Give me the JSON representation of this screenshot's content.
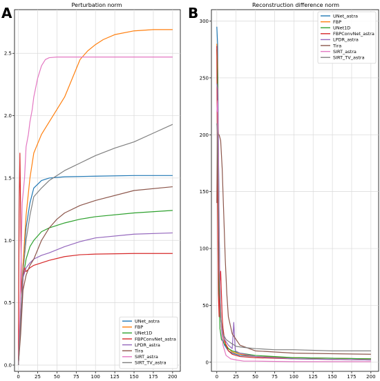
{
  "colors": {
    "UNet_astra": "#1f77b4",
    "FBP": "#ff7f0e",
    "UNet1D": "#2ca02c",
    "FBPConvNet_astra": "#d62728",
    "LPDR_astra": "#9467bd",
    "Tira": "#8c564b",
    "SIRT_astra": "#e377c2",
    "SIRT_TV_astra": "#7f7f7f"
  },
  "chart_data": [
    {
      "panel": "A",
      "type": "line",
      "title": "Perturbation norm",
      "xlabel": "",
      "ylabel": "",
      "xlim": [
        -5,
        210
      ],
      "ylim": [
        -0.05,
        2.85
      ],
      "xticks": [
        0,
        25,
        50,
        75,
        100,
        125,
        150,
        175,
        200
      ],
      "yticks": [
        0.0,
        0.5,
        1.0,
        1.5,
        2.0,
        2.5
      ],
      "ytick_labels": [
        "0.0",
        "0.5",
        "1.0",
        "1.5",
        "2.0",
        "2.5"
      ],
      "grid": true,
      "legend_position": "bottom-right",
      "series": [
        {
          "name": "UNet_astra",
          "x": [
            0,
            3,
            6,
            10,
            15,
            20,
            30,
            40,
            60,
            100,
            150,
            200
          ],
          "values": [
            0.0,
            0.3,
            0.8,
            1.1,
            1.3,
            1.42,
            1.48,
            1.5,
            1.51,
            1.515,
            1.52,
            1.52
          ]
        },
        {
          "name": "FBP",
          "x": [
            0,
            3,
            6,
            10,
            15,
            20,
            30,
            40,
            50,
            60,
            70,
            80,
            90,
            100,
            110,
            125,
            150,
            175,
            200
          ],
          "values": [
            0.0,
            0.3,
            0.8,
            1.2,
            1.5,
            1.7,
            1.85,
            1.95,
            2.05,
            2.15,
            2.3,
            2.45,
            2.52,
            2.57,
            2.61,
            2.65,
            2.68,
            2.69,
            2.69
          ]
        },
        {
          "name": "UNet1D",
          "x": [
            0,
            3,
            6,
            10,
            15,
            20,
            30,
            40,
            60,
            80,
            100,
            150,
            200
          ],
          "values": [
            0.0,
            0.4,
            0.7,
            0.85,
            0.95,
            1.0,
            1.07,
            1.1,
            1.14,
            1.17,
            1.19,
            1.22,
            1.24
          ]
        },
        {
          "name": "FBPConvNet_astra",
          "x": [
            0,
            1,
            2,
            3,
            4,
            5,
            6,
            8,
            10,
            15,
            20,
            30,
            40,
            60,
            80,
            100,
            150,
            200
          ],
          "values": [
            0.0,
            1.2,
            1.7,
            1.2,
            0.6,
            0.5,
            0.7,
            0.78,
            0.75,
            0.78,
            0.8,
            0.82,
            0.84,
            0.87,
            0.885,
            0.89,
            0.895,
            0.895
          ]
        },
        {
          "name": "LPDR_astra",
          "x": [
            0,
            3,
            6,
            10,
            15,
            20,
            30,
            40,
            60,
            80,
            100,
            150,
            200
          ],
          "values": [
            0.0,
            0.35,
            0.7,
            0.78,
            0.82,
            0.85,
            0.88,
            0.9,
            0.95,
            0.99,
            1.02,
            1.05,
            1.06
          ]
        },
        {
          "name": "Tira",
          "x": [
            0,
            3,
            6,
            10,
            15,
            20,
            30,
            40,
            50,
            60,
            80,
            100,
            150,
            200
          ],
          "values": [
            0.0,
            0.25,
            0.6,
            0.72,
            0.8,
            0.85,
            1.0,
            1.1,
            1.17,
            1.22,
            1.28,
            1.32,
            1.4,
            1.43
          ]
        },
        {
          "name": "SIRT_astra",
          "x": [
            0,
            2,
            5,
            8,
            10,
            13,
            15,
            18,
            20,
            25,
            30,
            35,
            40,
            50,
            100,
            150,
            200
          ],
          "values": [
            0.0,
            0.4,
            1.3,
            1.5,
            1.75,
            1.85,
            1.95,
            2.05,
            2.15,
            2.3,
            2.4,
            2.45,
            2.465,
            2.47,
            2.47,
            2.47,
            2.47
          ]
        },
        {
          "name": "SIRT_TV_astra",
          "x": [
            0,
            3,
            6,
            10,
            15,
            20,
            30,
            40,
            50,
            60,
            70,
            80,
            90,
            100,
            125,
            150,
            175,
            200
          ],
          "values": [
            0.0,
            0.4,
            0.75,
            1.0,
            1.2,
            1.35,
            1.42,
            1.48,
            1.52,
            1.56,
            1.59,
            1.62,
            1.65,
            1.68,
            1.74,
            1.79,
            1.86,
            1.93
          ]
        }
      ]
    },
    {
      "panel": "B",
      "type": "line",
      "title": "Reconstruction difference norm",
      "xlabel": "",
      "ylabel": "",
      "xlim": [
        -7,
        210
      ],
      "ylim": [
        -8,
        310
      ],
      "xticks": [
        0,
        25,
        50,
        75,
        100,
        125,
        150,
        175,
        200
      ],
      "yticks": [
        0,
        50,
        100,
        150,
        200,
        250,
        300
      ],
      "ytick_labels": [
        "0",
        "50",
        "100",
        "150",
        "200",
        "250",
        "300"
      ],
      "grid": true,
      "legend_position": "top-right",
      "series": [
        {
          "name": "UNet_astra",
          "x": [
            0,
            1,
            2,
            3,
            4,
            5,
            7,
            10,
            15,
            20,
            30,
            50,
            100,
            200
          ],
          "values": [
            295,
            280,
            200,
            120,
            70,
            40,
            22,
            15,
            10,
            8,
            6,
            5,
            4,
            3
          ]
        },
        {
          "name": "FBP",
          "x": [
            0,
            1,
            2,
            3,
            4,
            6,
            10,
            15,
            20,
            30,
            50,
            100,
            200
          ],
          "values": [
            280,
            260,
            180,
            100,
            60,
            30,
            18,
            12,
            9,
            7,
            5,
            4,
            3
          ]
        },
        {
          "name": "UNet1D",
          "x": [
            0,
            1,
            2,
            3,
            4,
            6,
            8,
            10,
            15,
            20,
            30,
            50,
            100,
            200
          ],
          "values": [
            275,
            250,
            150,
            60,
            30,
            20,
            18,
            16,
            12,
            10,
            8,
            6,
            4,
            3
          ]
        },
        {
          "name": "FBPConvNet_astra",
          "x": [
            0,
            1,
            2,
            3,
            4,
            5,
            6,
            7,
            8,
            10,
            12,
            15,
            20,
            30,
            50,
            100,
            200
          ],
          "values": [
            278,
            140,
            60,
            40,
            70,
            80,
            60,
            40,
            30,
            20,
            15,
            10,
            7,
            5,
            4,
            3,
            2
          ]
        },
        {
          "name": "LPDR_astra",
          "x": [
            0,
            1,
            2,
            3,
            4,
            6,
            10,
            15,
            20,
            22,
            24,
            30,
            50,
            100,
            200
          ],
          "values": [
            245,
            240,
            200,
            120,
            60,
            30,
            20,
            15,
            12,
            35,
            10,
            8,
            5,
            3,
            2
          ]
        },
        {
          "name": "Tira",
          "x": [
            0,
            1,
            2,
            3,
            5,
            7,
            9,
            11,
            13,
            15,
            20,
            30,
            50,
            100,
            200
          ],
          "values": [
            140,
            220,
            200,
            200,
            195,
            170,
            130,
            90,
            60,
            40,
            25,
            15,
            10,
            8,
            7
          ]
        },
        {
          "name": "SIRT_astra",
          "x": [
            0,
            1,
            2,
            3,
            5,
            8,
            12,
            18,
            25,
            35,
            50,
            100,
            200
          ],
          "values": [
            220,
            230,
            180,
            100,
            40,
            15,
            6,
            3,
            2,
            1,
            1,
            0.5,
            0.5
          ]
        },
        {
          "name": "SIRT_TV_astra",
          "x": [
            0,
            1,
            2,
            3,
            5,
            8,
            12,
            18,
            25,
            35,
            50,
            75,
            100,
            150,
            200
          ],
          "values": [
            210,
            200,
            150,
            80,
            40,
            25,
            20,
            17,
            14,
            13,
            12,
            11,
            11,
            10,
            10
          ]
        }
      ]
    }
  ]
}
